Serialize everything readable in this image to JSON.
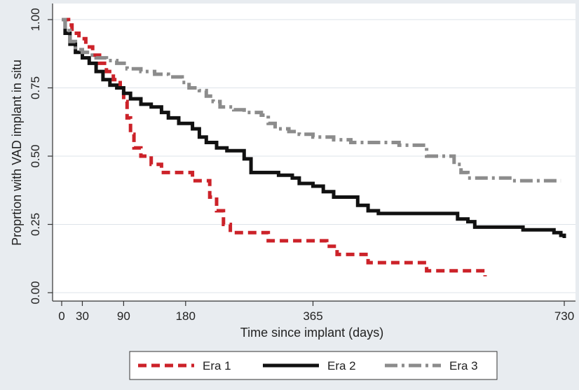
{
  "chart_data": {
    "type": "line",
    "step": true,
    "xlabel": "Time since implant (days)",
    "ylabel": "Proprtion with VAD implant in situ",
    "xlim": [
      0,
      730
    ],
    "ylim": [
      0,
      1
    ],
    "xticks": [
      0,
      30,
      90,
      180,
      365,
      730
    ],
    "xtick_labels": [
      "0",
      "30",
      "90",
      "180",
      "365",
      "730"
    ],
    "yticks": [
      0,
      0.25,
      0.5,
      0.75,
      1
    ],
    "ytick_labels": [
      "0.00",
      "0.25",
      "0.50",
      "0.75",
      "1.00"
    ],
    "grid": "horizontal",
    "legend_position": "bottom",
    "series": [
      {
        "name": "Era 1",
        "color": "#cc2229",
        "dash": "dashed",
        "points": [
          [
            0,
            1.0
          ],
          [
            10,
            0.98
          ],
          [
            15,
            0.95
          ],
          [
            25,
            0.93
          ],
          [
            35,
            0.9
          ],
          [
            45,
            0.87
          ],
          [
            55,
            0.84
          ],
          [
            65,
            0.81
          ],
          [
            75,
            0.78
          ],
          [
            85,
            0.75
          ],
          [
            90,
            0.7
          ],
          [
            95,
            0.64
          ],
          [
            100,
            0.58
          ],
          [
            105,
            0.53
          ],
          [
            115,
            0.5
          ],
          [
            130,
            0.47
          ],
          [
            145,
            0.44
          ],
          [
            180,
            0.44
          ],
          [
            190,
            0.41
          ],
          [
            205,
            0.41
          ],
          [
            215,
            0.35
          ],
          [
            225,
            0.3
          ],
          [
            235,
            0.25
          ],
          [
            245,
            0.22
          ],
          [
            270,
            0.22
          ],
          [
            300,
            0.19
          ],
          [
            365,
            0.19
          ],
          [
            385,
            0.17
          ],
          [
            400,
            0.14
          ],
          [
            440,
            0.14
          ],
          [
            445,
            0.11
          ],
          [
            525,
            0.11
          ],
          [
            530,
            0.08
          ],
          [
            590,
            0.08
          ],
          [
            610,
            0.08
          ],
          [
            615,
            0.06
          ]
        ]
      },
      {
        "name": "Era 2",
        "color": "#111111",
        "dash": "solid",
        "points": [
          [
            0,
            1.0
          ],
          [
            5,
            0.95
          ],
          [
            12,
            0.91
          ],
          [
            20,
            0.88
          ],
          [
            30,
            0.86
          ],
          [
            40,
            0.84
          ],
          [
            50,
            0.81
          ],
          [
            60,
            0.78
          ],
          [
            70,
            0.76
          ],
          [
            80,
            0.75
          ],
          [
            90,
            0.73
          ],
          [
            100,
            0.71
          ],
          [
            115,
            0.69
          ],
          [
            130,
            0.68
          ],
          [
            145,
            0.66
          ],
          [
            155,
            0.64
          ],
          [
            170,
            0.62
          ],
          [
            190,
            0.6
          ],
          [
            200,
            0.57
          ],
          [
            210,
            0.55
          ],
          [
            225,
            0.53
          ],
          [
            240,
            0.52
          ],
          [
            265,
            0.49
          ],
          [
            275,
            0.44
          ],
          [
            300,
            0.44
          ],
          [
            315,
            0.43
          ],
          [
            335,
            0.42
          ],
          [
            345,
            0.4
          ],
          [
            365,
            0.39
          ],
          [
            380,
            0.37
          ],
          [
            395,
            0.35
          ],
          [
            420,
            0.35
          ],
          [
            430,
            0.32
          ],
          [
            445,
            0.3
          ],
          [
            460,
            0.29
          ],
          [
            490,
            0.29
          ],
          [
            570,
            0.29
          ],
          [
            575,
            0.27
          ],
          [
            590,
            0.26
          ],
          [
            600,
            0.24
          ],
          [
            665,
            0.24
          ],
          [
            670,
            0.23
          ],
          [
            715,
            0.22
          ],
          [
            725,
            0.21
          ],
          [
            730,
            0.2
          ]
        ]
      },
      {
        "name": "Era 3",
        "color": "#8c8c8c",
        "dash": "dashdot",
        "points": [
          [
            0,
            1.0
          ],
          [
            5,
            0.96
          ],
          [
            12,
            0.92
          ],
          [
            20,
            0.89
          ],
          [
            30,
            0.88
          ],
          [
            40,
            0.87
          ],
          [
            50,
            0.86
          ],
          [
            65,
            0.85
          ],
          [
            80,
            0.84
          ],
          [
            95,
            0.82
          ],
          [
            115,
            0.81
          ],
          [
            135,
            0.8
          ],
          [
            155,
            0.79
          ],
          [
            175,
            0.77
          ],
          [
            185,
            0.75
          ],
          [
            200,
            0.74
          ],
          [
            210,
            0.72
          ],
          [
            220,
            0.7
          ],
          [
            230,
            0.68
          ],
          [
            250,
            0.67
          ],
          [
            265,
            0.66
          ],
          [
            290,
            0.65
          ],
          [
            300,
            0.62
          ],
          [
            310,
            0.6
          ],
          [
            330,
            0.59
          ],
          [
            345,
            0.58
          ],
          [
            365,
            0.57
          ],
          [
            395,
            0.56
          ],
          [
            420,
            0.55
          ],
          [
            490,
            0.54
          ],
          [
            530,
            0.5
          ],
          [
            560,
            0.5
          ],
          [
            570,
            0.47
          ],
          [
            580,
            0.44
          ],
          [
            590,
            0.42
          ],
          [
            620,
            0.42
          ],
          [
            655,
            0.41
          ],
          [
            725,
            0.41
          ]
        ]
      }
    ]
  }
}
